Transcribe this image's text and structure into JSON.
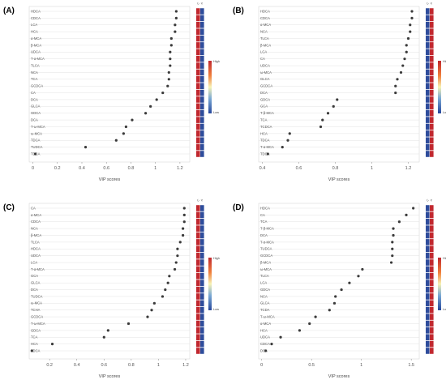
{
  "figure": {
    "xlabel": "VIP scores",
    "colorbar_high": "High",
    "colorbar_low": "Low",
    "heat_headers": [
      "C",
      "P"
    ]
  },
  "chart_data": [
    {
      "type": "scatter",
      "panel": "(A)",
      "xlabel": "VIP scores",
      "xticks": [
        0.0,
        0.2,
        0.4,
        0.6,
        0.8,
        1.0,
        1.2
      ],
      "xlim": [
        -0.03,
        1.28
      ],
      "categories": [
        "HDCA",
        "CDCA",
        "LCA",
        "HCA",
        "α-MCA",
        "β-MCA",
        "UDCA",
        "T-α-MCA",
        "TLCA",
        "NCA",
        "TCA",
        "GCDCA",
        "CA",
        "DCA",
        "GLCA",
        "GDCA",
        "DCA",
        "T-ω-MCA",
        "ω-MCA",
        "TDCA",
        "TUDCA",
        "TDCA"
      ],
      "values": [
        1.17,
        1.17,
        1.16,
        1.16,
        1.13,
        1.13,
        1.12,
        1.12,
        1.12,
        1.11,
        1.11,
        1.1,
        1.06,
        1.01,
        0.96,
        0.92,
        0.81,
        0.76,
        0.74,
        0.68,
        0.43,
        0.02
      ],
      "heat": [
        [
          1,
          0
        ],
        [
          1,
          0
        ],
        [
          1,
          0
        ],
        [
          1,
          0
        ],
        [
          1,
          0
        ],
        [
          1,
          0
        ],
        [
          1,
          0
        ],
        [
          1,
          0
        ],
        [
          1,
          0
        ],
        [
          1,
          0
        ],
        [
          1,
          0
        ],
        [
          1,
          0
        ],
        [
          1,
          0
        ],
        [
          1,
          0
        ],
        [
          1,
          0
        ],
        [
          1,
          0
        ],
        [
          1,
          0
        ],
        [
          1,
          0
        ],
        [
          1,
          0
        ],
        [
          1,
          0
        ],
        [
          1,
          0
        ],
        [
          1,
          0
        ]
      ]
    },
    {
      "type": "scatter",
      "panel": "(B)",
      "xlabel": "VIP scores",
      "xticks": [
        0.4,
        0.6,
        0.8,
        1.0,
        1.2
      ],
      "xlim": [
        0.38,
        1.26
      ],
      "categories": [
        "HDCA",
        "CDCA",
        "α-MCA",
        "NCA",
        "TLCA",
        "β-MCA",
        "LCA",
        "CA",
        "UDCA",
        "ω-MCA",
        "GLCA",
        "GCDCA",
        "DCA",
        "GDCA",
        "GCA",
        "T-β-MCA",
        "TCA",
        "TCDCA",
        "HCA",
        "TDCA",
        "T-α-MCA",
        "TDCA"
      ],
      "values": [
        1.22,
        1.22,
        1.21,
        1.21,
        1.2,
        1.19,
        1.19,
        1.18,
        1.17,
        1.16,
        1.14,
        1.13,
        1.13,
        0.81,
        0.79,
        0.76,
        0.73,
        0.72,
        0.55,
        0.54,
        0.51,
        0.43
      ],
      "heat": [
        [
          0,
          1
        ],
        [
          0,
          1
        ],
        [
          0,
          1
        ],
        [
          0,
          1
        ],
        [
          0,
          1
        ],
        [
          0,
          1
        ],
        [
          0,
          1
        ],
        [
          0,
          1
        ],
        [
          0,
          1
        ],
        [
          0,
          1
        ],
        [
          0,
          1
        ],
        [
          0,
          1
        ],
        [
          0,
          1
        ],
        [
          0,
          1
        ],
        [
          0,
          1
        ],
        [
          0,
          1
        ],
        [
          0,
          1
        ],
        [
          0,
          1
        ],
        [
          0,
          1
        ],
        [
          0,
          1
        ],
        [
          0,
          1
        ],
        [
          0,
          1
        ]
      ]
    },
    {
      "type": "scatter",
      "panel": "(C)",
      "xlabel": "VIP scores",
      "xticks": [
        0.2,
        0.4,
        0.6,
        0.8,
        1.0,
        1.2
      ],
      "xlim": [
        0.05,
        1.23
      ],
      "categories": [
        "CA",
        "α-MCA",
        "CDCA",
        "NCA",
        "β-MCA",
        "TLCA",
        "HDCA",
        "UDCA",
        "LCA",
        "T-α-MCA",
        "GCA",
        "GLCA",
        "DCA",
        "TUDCA",
        "ω-MCA",
        "TCHA",
        "GCDCA",
        "T-ω-MCA",
        "GDCA",
        "TCA",
        "HCA",
        "TDCA"
      ],
      "values": [
        1.19,
        1.19,
        1.19,
        1.18,
        1.18,
        1.16,
        1.14,
        1.14,
        1.13,
        1.12,
        1.08,
        1.07,
        1.05,
        1.03,
        0.97,
        0.95,
        0.92,
        0.78,
        0.63,
        0.6,
        0.22,
        0.07
      ],
      "heat": [
        [
          1,
          0
        ],
        [
          1,
          0
        ],
        [
          1,
          0
        ],
        [
          1,
          0
        ],
        [
          1,
          0
        ],
        [
          1,
          0
        ],
        [
          1,
          0
        ],
        [
          1,
          0
        ],
        [
          1,
          0
        ],
        [
          1,
          0
        ],
        [
          1,
          0
        ],
        [
          1,
          0
        ],
        [
          1,
          0
        ],
        [
          1,
          0
        ],
        [
          1,
          0
        ],
        [
          1,
          0
        ],
        [
          1,
          0
        ],
        [
          1,
          0
        ],
        [
          1,
          0
        ],
        [
          1,
          0
        ],
        [
          1,
          0
        ],
        [
          1,
          0
        ]
      ]
    },
    {
      "type": "scatter",
      "panel": "(D)",
      "xlabel": "VIP scores",
      "xticks": [
        0.0,
        0.5,
        1.0,
        1.5
      ],
      "xlim": [
        -0.03,
        1.58
      ],
      "categories": [
        "HDCA",
        "CA",
        "TCA",
        "T-β-MCA",
        "DCA",
        "T-α-MCA",
        "TUDCA",
        "GCDCA",
        "β-MCA",
        "ω-MCA",
        "TLCA",
        "LCA",
        "GDCA",
        "NCA",
        "GLCA",
        "TCDA",
        "T-ω-MCA",
        "α-MCA",
        "HCA",
        "UDCA",
        "CDCA",
        "DCA"
      ],
      "values": [
        1.52,
        1.45,
        1.38,
        1.32,
        1.32,
        1.31,
        1.31,
        1.31,
        1.3,
        1.01,
        0.97,
        0.88,
        0.8,
        0.74,
        0.73,
        0.68,
        0.54,
        0.48,
        0.38,
        0.19,
        0.1,
        0.04
      ],
      "heat": [
        [
          0,
          1
        ],
        [
          0,
          1
        ],
        [
          0,
          1
        ],
        [
          0,
          1
        ],
        [
          0,
          1
        ],
        [
          0,
          1
        ],
        [
          0,
          1
        ],
        [
          0,
          1
        ],
        [
          0,
          1
        ],
        [
          0,
          1
        ],
        [
          0,
          1
        ],
        [
          0,
          1
        ],
        [
          0,
          1
        ],
        [
          0,
          1
        ],
        [
          0,
          1
        ],
        [
          0,
          1
        ],
        [
          0,
          1
        ],
        [
          0,
          1
        ],
        [
          0,
          1
        ],
        [
          0,
          1
        ],
        [
          0,
          1
        ],
        [
          0,
          1
        ]
      ]
    }
  ]
}
